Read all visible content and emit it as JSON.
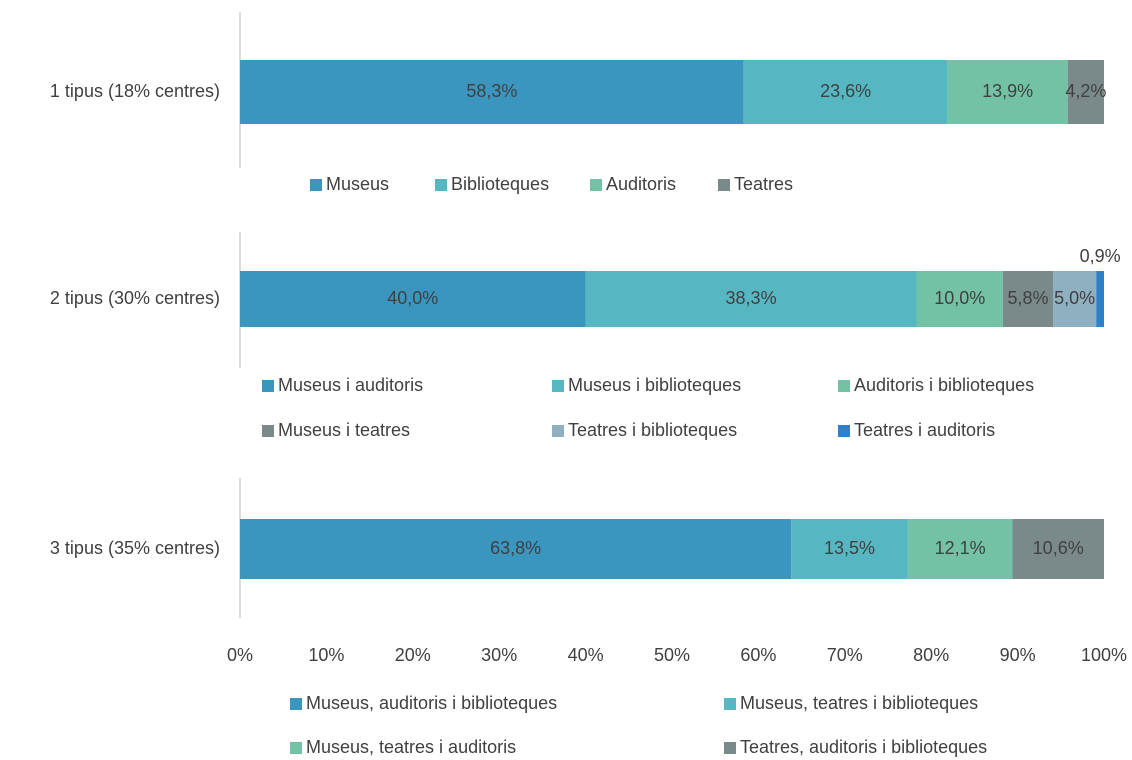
{
  "chart_data": [
    {
      "type": "bar",
      "orientation": "horizontal",
      "stacked": true,
      "categories": [
        "1 tipus (18% centres)"
      ],
      "xlim": [
        0,
        100
      ],
      "series": [
        {
          "name": "Museus",
          "color": "#3a96bf",
          "values": [
            58.3
          ],
          "value_labels": [
            "58,3%"
          ]
        },
        {
          "name": "Biblioteques",
          "color": "#56b7c2",
          "values": [
            23.6
          ],
          "value_labels": [
            "23,6%"
          ]
        },
        {
          "name": "Auditoris",
          "color": "#74c2a6",
          "values": [
            13.9
          ],
          "value_labels": [
            "13,9%"
          ]
        },
        {
          "name": "Teatres",
          "color": "#7a8a8a",
          "values": [
            4.2
          ],
          "value_labels": [
            "4,2%"
          ]
        }
      ]
    },
    {
      "type": "bar",
      "orientation": "horizontal",
      "stacked": true,
      "categories": [
        "2 tipus (30% centres)"
      ],
      "xlim": [
        0,
        100
      ],
      "series": [
        {
          "name": "Museus i auditoris",
          "color": "#3a96bf",
          "values": [
            40.0
          ],
          "value_labels": [
            "40,0%"
          ]
        },
        {
          "name": "Museus i biblioteques",
          "color": "#56b7c2",
          "values": [
            38.3
          ],
          "value_labels": [
            "38,3%"
          ]
        },
        {
          "name": "Auditoris i biblioteques",
          "color": "#74c2a6",
          "values": [
            10.0
          ],
          "value_labels": [
            "10,0%"
          ]
        },
        {
          "name": "Museus i teatres",
          "color": "#7a8a8a",
          "values": [
            5.8
          ],
          "value_labels": [
            "5,8%"
          ]
        },
        {
          "name": "Teatres i biblioteques",
          "color": "#8fb0c0",
          "values": [
            5.0
          ],
          "value_labels": [
            "5,0%"
          ]
        },
        {
          "name": "Teatres i auditoris",
          "color": "#2f80c8",
          "values": [
            0.9
          ],
          "value_labels": [
            "0,9%"
          ]
        }
      ]
    },
    {
      "type": "bar",
      "orientation": "horizontal",
      "stacked": true,
      "categories": [
        "3 tipus (35% centres)"
      ],
      "xlim": [
        0,
        100
      ],
      "xticks": [
        {
          "value": 0,
          "label": "0%"
        },
        {
          "value": 10,
          "label": "10%"
        },
        {
          "value": 20,
          "label": "20%"
        },
        {
          "value": 30,
          "label": "30%"
        },
        {
          "value": 40,
          "label": "40%"
        },
        {
          "value": 50,
          "label": "50%"
        },
        {
          "value": 60,
          "label": "60%"
        },
        {
          "value": 70,
          "label": "70%"
        },
        {
          "value": 80,
          "label": "80%"
        },
        {
          "value": 90,
          "label": "90%"
        },
        {
          "value": 100,
          "label": "100%"
        }
      ],
      "series": [
        {
          "name": "Museus, auditoris i biblioteques",
          "color": "#3a96bf",
          "values": [
            63.8
          ],
          "value_labels": [
            "63,8%"
          ]
        },
        {
          "name": "Museus, teatres i biblioteques",
          "color": "#56b7c2",
          "values": [
            13.5
          ],
          "value_labels": [
            "13,5%"
          ]
        },
        {
          "name": "Museus, teatres i auditoris",
          "color": "#74c2a6",
          "values": [
            12.1
          ],
          "value_labels": [
            "12,1%"
          ]
        },
        {
          "name": "Teatres, auditoris i biblioteques",
          "color": "#7a8a8a",
          "values": [
            10.6
          ],
          "value_labels": [
            "10,6%"
          ]
        }
      ]
    }
  ]
}
